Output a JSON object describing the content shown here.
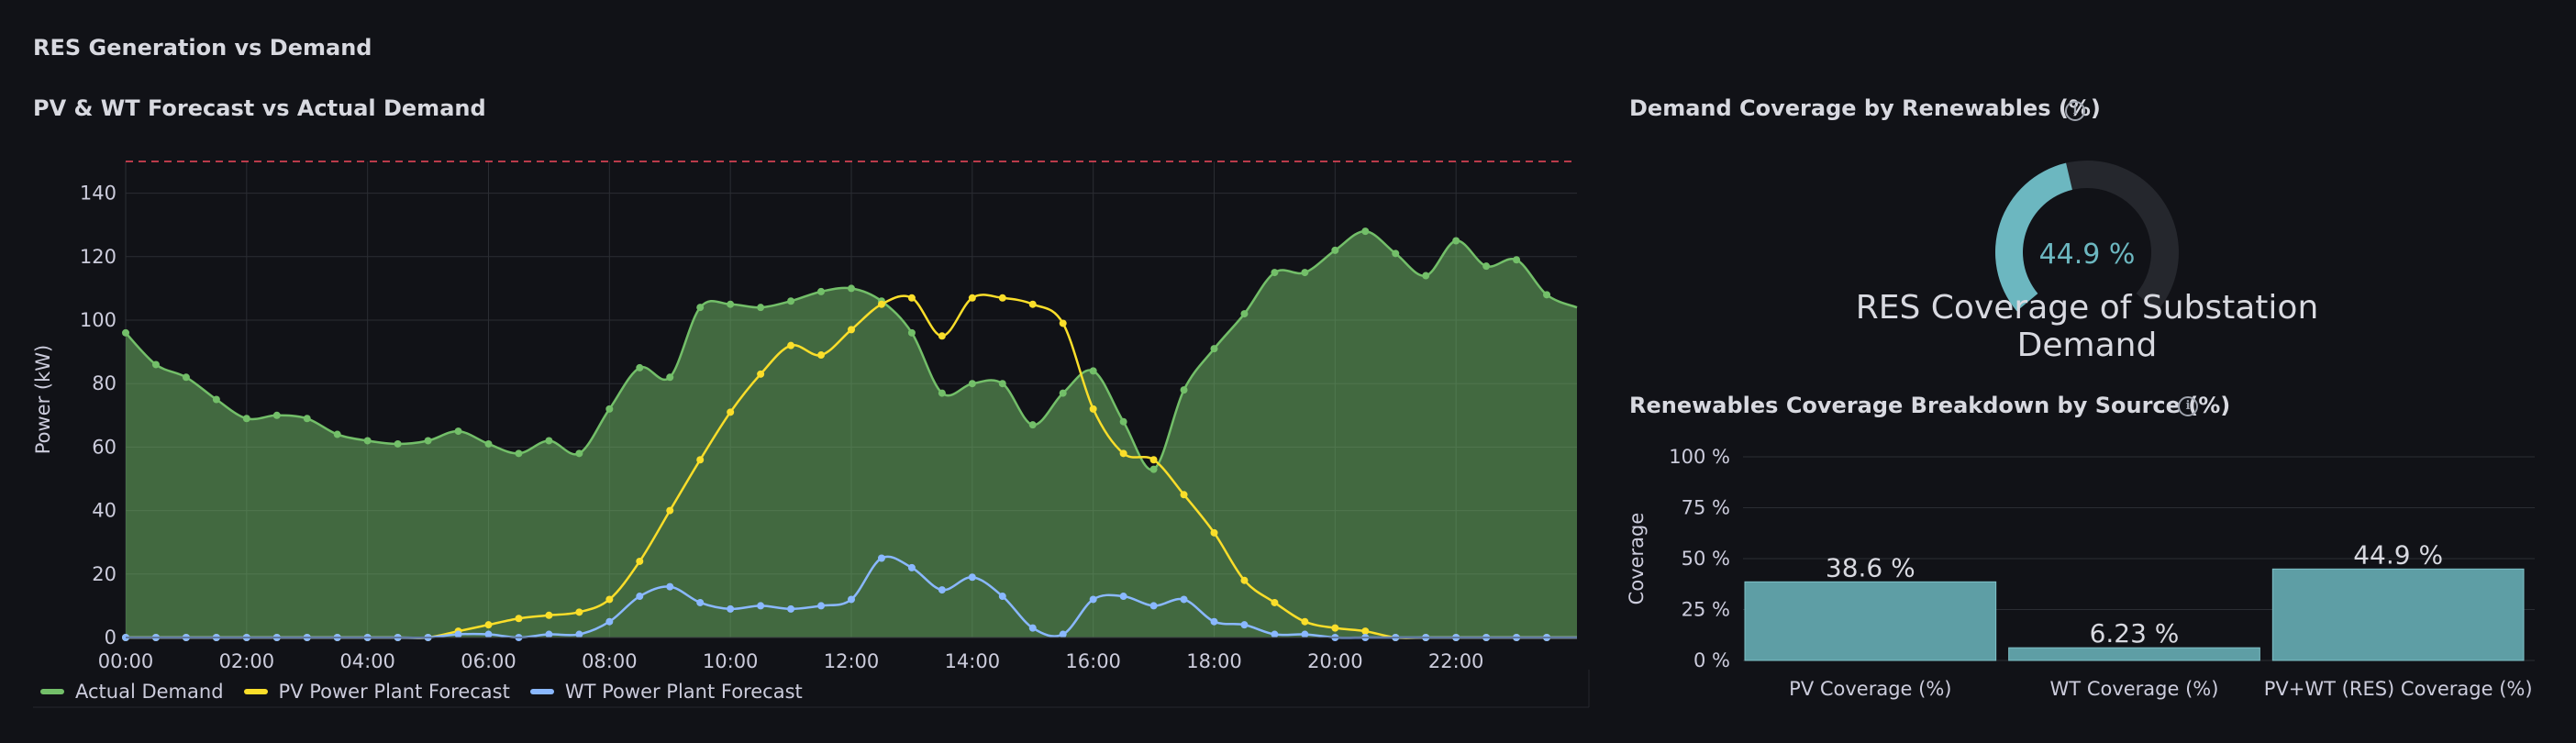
{
  "row_title": "RES Generation vs Demand",
  "timeseries_panel": {
    "title": "PV & WT Forecast vs Actual Demand"
  },
  "gauge_panel": {
    "title": "Demand Coverage by Renewables (%)",
    "value_text": "44.9 %",
    "label": "RES Coverage of Substation Demand",
    "info_icon": "info-circle-icon"
  },
  "bar_panel": {
    "title": "Renewables Coverage Breakdown by Source (%)",
    "info_icon": "info-circle-icon"
  },
  "colors": {
    "demand": "#73bf69",
    "pv": "#fade2a",
    "wt": "#8ab8ff",
    "threshold": "#f2495c",
    "gauge": "#6cb7c0",
    "gauge_track": "#25272d",
    "bar": "#5e9ea5"
  },
  "chart_data": [
    {
      "type": "line",
      "title": "PV & WT Forecast vs Actual Demand",
      "xlabel": "",
      "ylabel": "Power (kW)",
      "ylim": [
        0,
        150
      ],
      "yticks": [
        0,
        20,
        40,
        60,
        80,
        100,
        120,
        140
      ],
      "xticks": [
        "00:00",
        "02:00",
        "04:00",
        "06:00",
        "08:00",
        "10:00",
        "12:00",
        "14:00",
        "16:00",
        "18:00",
        "20:00",
        "22:00"
      ],
      "threshold": 150,
      "grid": true,
      "legend": "bottom-left",
      "x_hours": [
        0,
        0.5,
        1,
        1.5,
        2,
        2.5,
        3,
        3.5,
        4,
        4.5,
        5,
        5.5,
        6,
        6.5,
        7,
        7.5,
        8,
        8.5,
        9,
        9.5,
        10,
        10.5,
        11,
        11.5,
        12,
        12.5,
        13,
        13.5,
        14,
        14.5,
        15,
        15.5,
        16,
        16.5,
        17,
        17.5,
        18,
        18.5,
        19,
        19.5,
        20,
        20.5,
        21,
        21.5,
        22,
        22.5,
        23,
        23.5,
        24
      ],
      "series": [
        {
          "name": "Actual Demand",
          "color": "#73bf69",
          "fill": true,
          "values": [
            96,
            86,
            82,
            75,
            69,
            70,
            69,
            64,
            62,
            61,
            62,
            65,
            61,
            58,
            62,
            58,
            72,
            85,
            82,
            104,
            105,
            104,
            106,
            109,
            110,
            106,
            96,
            77,
            80,
            80,
            67,
            77,
            84,
            68,
            53,
            78,
            91,
            102,
            115,
            115,
            122,
            128,
            121,
            114,
            125,
            117,
            119,
            108,
            104
          ]
        },
        {
          "name": "PV Power Plant Forecast",
          "color": "#fade2a",
          "fill": false,
          "values": [
            0,
            0,
            0,
            0,
            0,
            0,
            0,
            0,
            0,
            0,
            0,
            2,
            4,
            6,
            7,
            8,
            12,
            24,
            40,
            56,
            71,
            83,
            92,
            89,
            97,
            105,
            107,
            95,
            107,
            107,
            105,
            99,
            72,
            58,
            56,
            45,
            33,
            18,
            11,
            5,
            3,
            2,
            0,
            0,
            0,
            0,
            0,
            0,
            0
          ]
        },
        {
          "name": "WT Power Plant Forecast",
          "color": "#8ab8ff",
          "fill": false,
          "values": [
            0,
            0,
            0,
            0,
            0,
            0,
            0,
            0,
            0,
            0,
            0,
            1,
            1,
            0,
            1,
            1,
            5,
            13,
            16,
            11,
            9,
            10,
            9,
            10,
            12,
            25,
            22,
            15,
            19,
            13,
            3,
            1,
            12,
            13,
            10,
            12,
            5,
            4,
            1,
            1,
            0,
            0,
            0,
            0,
            0,
            0,
            0,
            0,
            0
          ]
        }
      ]
    },
    {
      "type": "gauge",
      "title": "Demand Coverage by Renewables (%)",
      "value": 44.9,
      "min": 0,
      "max": 100,
      "label": "RES Coverage of Substation Demand"
    },
    {
      "type": "bar",
      "title": "Renewables Coverage Breakdown by Source (%)",
      "categories": [
        "PV Coverage (%)",
        "WT Coverage (%)",
        "PV+WT (RES) Coverage (%)"
      ],
      "values": [
        38.6,
        6.23,
        44.9
      ],
      "value_labels": [
        "38.6 %",
        "6.23 %",
        "44.9 %"
      ],
      "ylabel": "Coverage",
      "ylim": [
        0,
        100
      ],
      "yticks": [
        "0 %",
        "25 %",
        "50 %",
        "75 %",
        "100 %"
      ],
      "ytick_values": [
        0,
        25,
        50,
        75,
        100
      ]
    }
  ]
}
